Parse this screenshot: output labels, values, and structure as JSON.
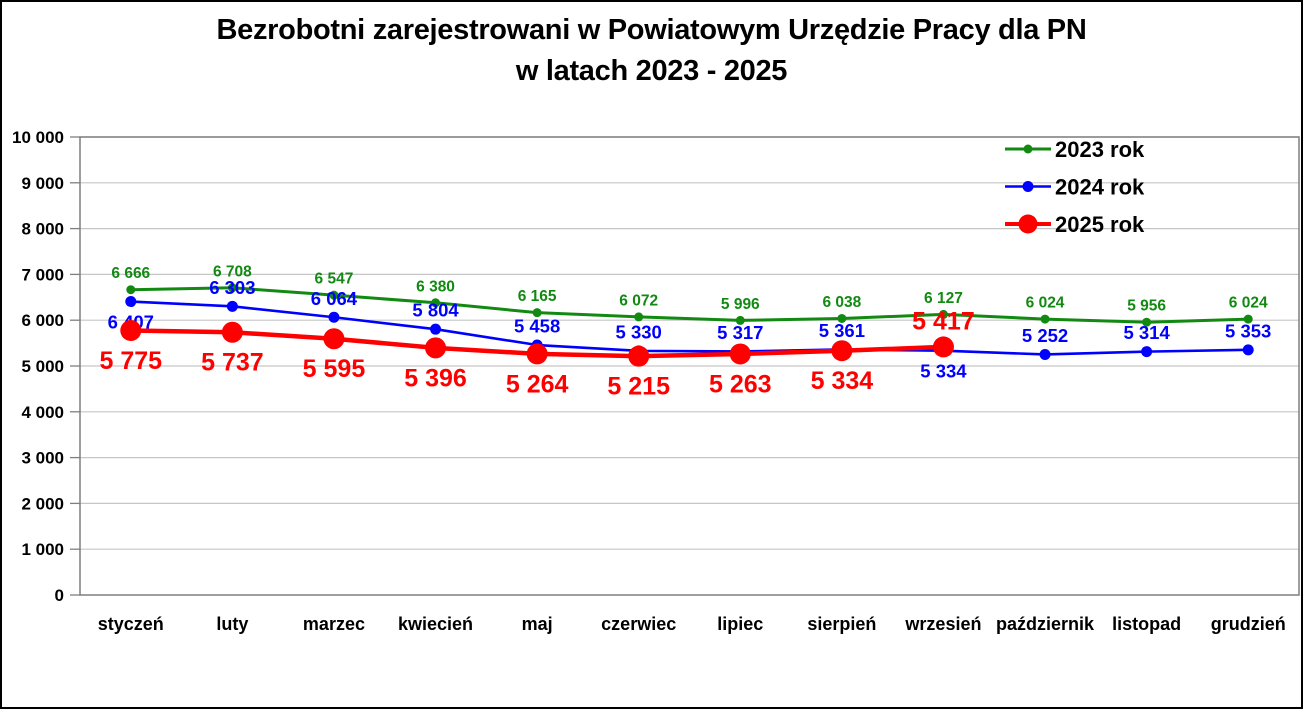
{
  "title": {
    "line1": "Bezrobotni zarejestrowani w Powiatowym Urzędzie Pracy dla PN",
    "line2": "w latach 2023 - 2025"
  },
  "chart_data": {
    "type": "line",
    "title": "Bezrobotni zarejestrowani w Powiatowym Urzędzie Pracy dla PN w latach 2023 - 2025",
    "xlabel": "",
    "ylabel": "",
    "ylim": [
      0,
      10000
    ],
    "ytick_step": 1000,
    "grid": true,
    "legend_position": "top-right-inside",
    "categories": [
      "styczeń",
      "luty",
      "marzec",
      "kwiecień",
      "maj",
      "czerwiec",
      "lipiec",
      "sierpień",
      "wrzesień",
      "październik",
      "listopad",
      "grudzień"
    ],
    "series": [
      {
        "name": "2023 rok",
        "color": "#128a12",
        "values": [
          6666,
          6708,
          6547,
          6380,
          6165,
          6072,
          5996,
          6038,
          6127,
          6024,
          5956,
          6024
        ],
        "label_positions": [
          "above",
          "above",
          "above",
          "above",
          "above",
          "above",
          "above",
          "above",
          "above",
          "above",
          "above",
          "above"
        ],
        "line_width": 3,
        "marker_radius": 4.5,
        "label_font_size": 15.5
      },
      {
        "name": "2024 rok",
        "color": "#0000ff",
        "values": [
          6407,
          6303,
          6064,
          5804,
          5458,
          5330,
          5317,
          5361,
          5334,
          5252,
          5314,
          5353
        ],
        "label_positions": [
          "below",
          "above",
          "above",
          "above",
          "above",
          "above",
          "above",
          "above",
          "below",
          "above",
          "above",
          "above"
        ],
        "line_width": 2.6,
        "marker_radius": 5.5,
        "label_font_size": 18.5
      },
      {
        "name": "2025 rok",
        "color": "#ff0000",
        "values": [
          5775,
          5737,
          5595,
          5396,
          5264,
          5215,
          5263,
          5334,
          5417,
          null,
          null,
          null
        ],
        "label_positions": [
          "below",
          "below",
          "below",
          "below",
          "below",
          "below",
          "below",
          "below",
          "above"
        ],
        "line_width": 4.5,
        "marker_radius": 10.5,
        "label_font_size": 25
      }
    ]
  }
}
